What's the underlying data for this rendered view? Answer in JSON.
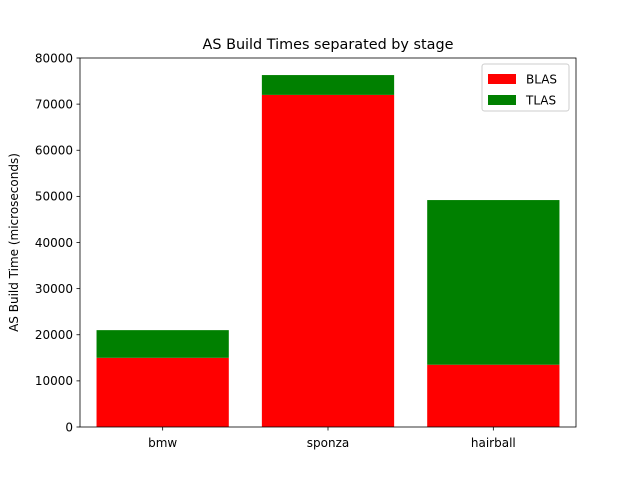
{
  "chart_data": {
    "type": "bar",
    "stacked": true,
    "title": "AS Build Times separated by stage",
    "xlabel": "",
    "ylabel": "AS Build Time (microseconds)",
    "categories": [
      "bmw",
      "sponza",
      "hairball"
    ],
    "series": [
      {
        "name": "BLAS",
        "color": "#ff0000",
        "values": [
          15000,
          72000,
          13500
        ]
      },
      {
        "name": "TLAS",
        "color": "#008000",
        "values": [
          6000,
          4300,
          35700
        ]
      }
    ],
    "ylim": [
      0,
      80000
    ],
    "yticks": [
      0,
      10000,
      20000,
      30000,
      40000,
      50000,
      60000,
      70000,
      80000
    ],
    "grid": false,
    "legend_position": "top-right"
  }
}
